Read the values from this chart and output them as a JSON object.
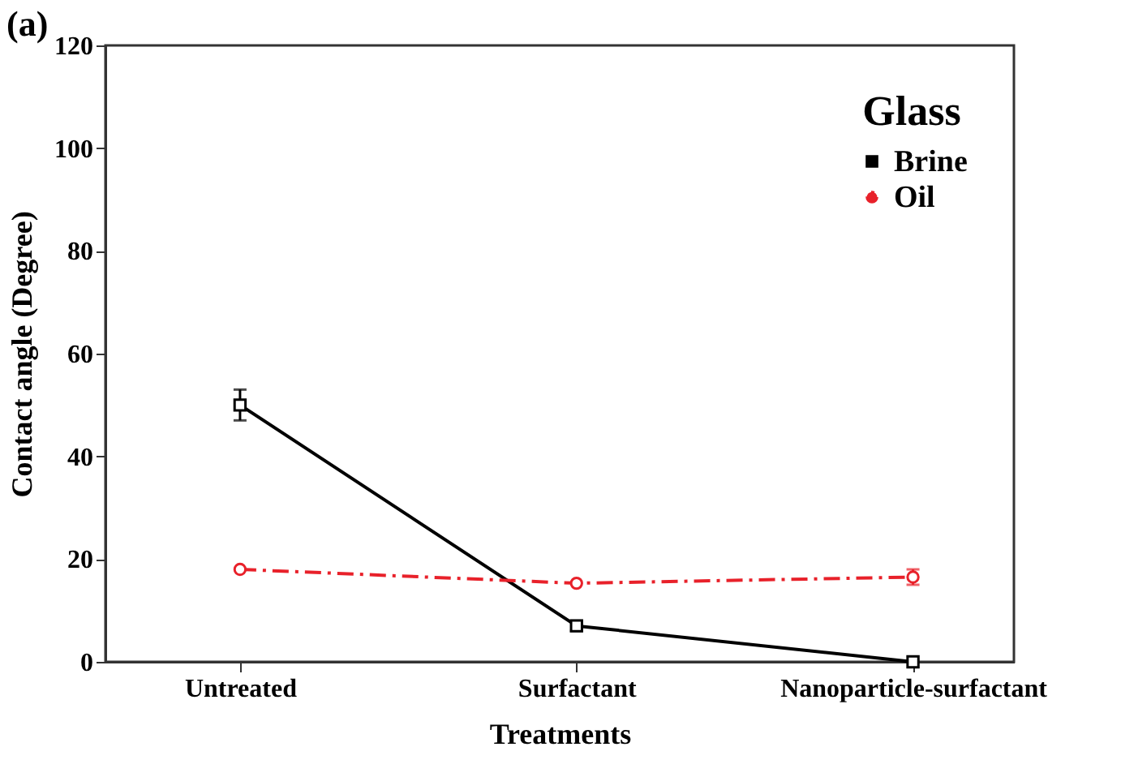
{
  "chart_data": {
    "type": "line",
    "annotations": [
      "(a)"
    ],
    "xlabel": "Treatments",
    "ylabel": "Contact angle (Degree)",
    "legend_title": "Glass",
    "categories": [
      "Untreated",
      "Surfactant",
      "Nanoparticle-surfactant"
    ],
    "series": [
      {
        "name": "Brine",
        "color": "#000000",
        "values": [
          50,
          7,
          0
        ],
        "errors": [
          3,
          1,
          null
        ],
        "marker": "square",
        "line_style": "solid"
      },
      {
        "name": "Oil",
        "color": "#e8212a",
        "values": [
          18,
          15.3,
          16.5
        ],
        "errors": [
          null,
          null,
          1.5
        ],
        "marker": "circle",
        "line_style": "dashdot"
      }
    ],
    "ylim": [
      0,
      120
    ],
    "yticks": [
      0,
      20,
      40,
      60,
      80,
      100,
      120
    ],
    "grid": false,
    "legend": "top right"
  }
}
